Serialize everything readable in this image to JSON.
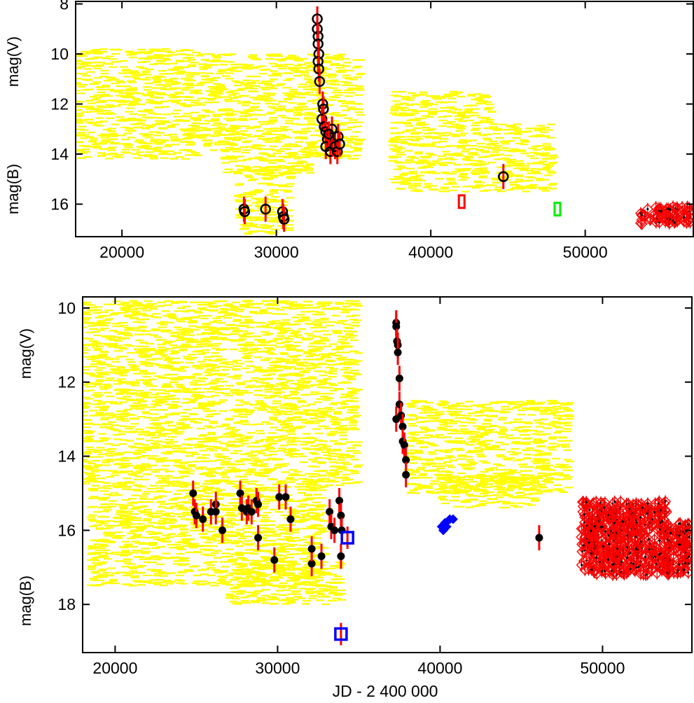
{
  "chart_data": [
    {
      "type": "scatter",
      "panel": "top",
      "xlabel": "",
      "ylabel_upper": "mag(V)",
      "ylabel_lower": "mag(B)",
      "xlim": [
        17000,
        57000
      ],
      "ylim": [
        17.3,
        7.9
      ],
      "y_inverted": true,
      "xticks": [
        20000,
        30000,
        40000,
        50000
      ],
      "yticks": [
        8,
        10,
        12,
        14,
        16
      ],
      "colors": {
        "visual": "#ffff00",
        "errorbar": "#ff0000",
        "photographic": "#000000",
        "red_marker": "#ff0000",
        "green_marker": "#00ee00",
        "ccd_diamond": "#ff0000"
      },
      "series": [
        {
          "marker": "yellow-dash",
          "regions": [
            {
              "x": [
                17000,
                25000
              ],
              "y": [
                9.8,
                14.2
              ]
            },
            {
              "x": [
                25000,
                26500
              ],
              "y": [
                10.0,
                14.0
              ]
            },
            {
              "x": [
                26500,
                32400
              ],
              "y": [
                10.0,
                14.8
              ]
            },
            {
              "x": [
                27500,
                31000
              ],
              "y": [
                14.5,
                17.2
              ]
            },
            {
              "x": [
                32300,
                35500
              ],
              "y": [
                10.0,
                14.2
              ]
            },
            {
              "x": [
                37500,
                44000
              ],
              "y": [
                11.5,
                15.5
              ]
            },
            {
              "x": [
                44000,
                48000
              ],
              "y": [
                12.8,
                15.5
              ]
            }
          ]
        },
        {
          "marker": "black-open-circle",
          "points": [
            [
              27900,
              16.2
            ],
            [
              27950,
              16.3
            ],
            [
              29300,
              16.2
            ],
            [
              30400,
              16.3
            ],
            [
              30450,
              16.5
            ],
            [
              30500,
              16.6
            ],
            [
              32650,
              8.6
            ],
            [
              32650,
              9.0
            ],
            [
              32700,
              9.3
            ],
            [
              32700,
              9.6
            ],
            [
              32750,
              10.0
            ],
            [
              32700,
              10.3
            ],
            [
              32750,
              10.6
            ],
            [
              32800,
              11.1
            ],
            [
              33000,
              12.0
            ],
            [
              33050,
              12.2
            ],
            [
              32950,
              12.6
            ],
            [
              33100,
              12.9
            ],
            [
              33200,
              13.1
            ],
            [
              33300,
              13.4
            ],
            [
              33200,
              13.7
            ],
            [
              33500,
              13.9
            ],
            [
              33650,
              13.6
            ],
            [
              33800,
              13.7
            ],
            [
              33950,
              13.9
            ],
            [
              34000,
              13.3
            ],
            [
              33600,
              13.0
            ],
            [
              34100,
              13.6
            ],
            [
              33400,
              13.2
            ],
            [
              44700,
              14.9
            ]
          ]
        },
        {
          "marker": "red-open-rectangle",
          "points": [
            [
              42000,
              15.9
            ]
          ]
        },
        {
          "marker": "green-open-rectangle",
          "points": [
            [
              48200,
              16.2
            ]
          ]
        },
        {
          "marker": "red-open-diamond-band",
          "x": [
            53500,
            56800
          ],
          "y": [
            16.1,
            16.8
          ]
        }
      ]
    },
    {
      "type": "scatter",
      "panel": "bottom",
      "xlabel": "JD - 2 400 000",
      "ylabel_upper": "mag(V)",
      "ylabel_lower": "mag(B)",
      "xlim": [
        18000,
        55500
      ],
      "ylim": [
        19.3,
        9.7
      ],
      "y_inverted": true,
      "xticks": [
        20000,
        30000,
        40000,
        50000
      ],
      "yticks": [
        10,
        12,
        14,
        16,
        18
      ],
      "colors": {
        "visual": "#ffff00",
        "errorbar": "#ff0000",
        "photographic": "#000000",
        "blue_marker": "#0000ff",
        "ccd_diamond": "#ff0000"
      },
      "series": [
        {
          "marker": "yellow-dash",
          "regions": [
            {
              "x": [
                18000,
                35000
              ],
              "y": [
                9.8,
                14.8
              ]
            },
            {
              "x": [
                18500,
                33000
              ],
              "y": [
                14.8,
                17.5
              ]
            },
            {
              "x": [
                27000,
                34000
              ],
              "y": [
                16.8,
                18.0
              ]
            },
            {
              "x": [
                38000,
                48000
              ],
              "y": [
                12.5,
                15.0
              ]
            },
            {
              "x": [
                40000,
                46000
              ],
              "y": [
                14.5,
                15.4
              ]
            }
          ]
        },
        {
          "marker": "black-filled-circle",
          "points": [
            [
              24800,
              15.0
            ],
            [
              24900,
              15.5
            ],
            [
              25000,
              15.6
            ],
            [
              25400,
              15.7
            ],
            [
              25900,
              15.5
            ],
            [
              26200,
              15.3
            ],
            [
              26200,
              15.5
            ],
            [
              26600,
              16.0
            ],
            [
              27700,
              15.0
            ],
            [
              27800,
              15.4
            ],
            [
              28100,
              15.5
            ],
            [
              28200,
              15.4
            ],
            [
              28400,
              15.5
            ],
            [
              28700,
              15.2
            ],
            [
              28800,
              15.3
            ],
            [
              28800,
              16.2
            ],
            [
              29800,
              16.8
            ],
            [
              30100,
              15.1
            ],
            [
              30500,
              15.1
            ],
            [
              30800,
              15.7
            ],
            [
              32100,
              16.9
            ],
            [
              32100,
              16.5
            ],
            [
              32700,
              16.7
            ],
            [
              33200,
              15.5
            ],
            [
              33300,
              15.9
            ],
            [
              33500,
              16.0
            ],
            [
              33800,
              15.2
            ],
            [
              33900,
              15.6
            ],
            [
              33900,
              16.7
            ],
            [
              33950,
              16.0
            ],
            [
              37300,
              10.4
            ],
            [
              37300,
              10.5
            ],
            [
              37350,
              10.9
            ],
            [
              37400,
              11.0
            ],
            [
              37400,
              11.2
            ],
            [
              37500,
              11.9
            ],
            [
              37300,
              13.0
            ],
            [
              37500,
              12.6
            ],
            [
              37600,
              12.9
            ],
            [
              37700,
              13.2
            ],
            [
              37700,
              13.6
            ],
            [
              37800,
              13.7
            ],
            [
              37900,
              14.1
            ],
            [
              37900,
              14.5
            ],
            [
              46100,
              16.2
            ]
          ]
        },
        {
          "marker": "blue-open-square",
          "points": [
            [
              34300,
              16.2
            ],
            [
              33900,
              18.8
            ]
          ]
        },
        {
          "marker": "blue-filled-diamond",
          "points": [
            [
              40100,
              15.9
            ],
            [
              40200,
              16.0
            ],
            [
              40300,
              15.8
            ],
            [
              40400,
              15.9
            ],
            [
              40600,
              15.7
            ],
            [
              40800,
              15.7
            ]
          ]
        },
        {
          "marker": "red-open-diamond-band",
          "x": [
            48700,
            54000
          ],
          "y": [
            15.2,
            17.2
          ]
        },
        {
          "marker": "red-open-diamond-band",
          "x": [
            53900,
            55400
          ],
          "y": [
            15.8,
            17.2
          ]
        }
      ]
    }
  ]
}
